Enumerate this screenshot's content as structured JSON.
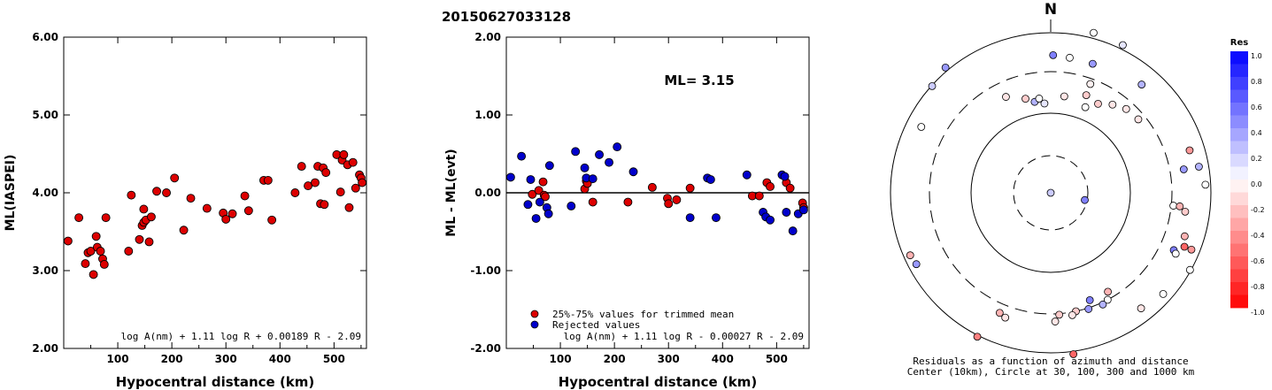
{
  "title": "20150627033128",
  "chart_data": [
    {
      "type": "scatter",
      "xlabel": "Hypocentral distance (km)",
      "ylabel": "ML(IASPEI)",
      "xlim": [
        0,
        560
      ],
      "ylim": [
        2.0,
        6.0
      ],
      "xticks": [
        100,
        200,
        300,
        400,
        500
      ],
      "yticks": [
        "2.00",
        "3.00",
        "4.00",
        "5.00",
        "6.00"
      ],
      "formula": "log A(nm) + 1.11 log R + 0.00189 R - 2.09",
      "series": [
        {
          "color": "#dd0000",
          "points": [
            [
              8,
              3.38
            ],
            [
              28,
              3.68
            ],
            [
              40,
              3.09
            ],
            [
              45,
              3.23
            ],
            [
              50,
              3.25
            ],
            [
              55,
              2.95
            ],
            [
              60,
              3.44
            ],
            [
              62,
              3.3
            ],
            [
              68,
              3.25
            ],
            [
              72,
              3.15
            ],
            [
              75,
              3.08
            ],
            [
              78,
              3.68
            ],
            [
              120,
              3.25
            ],
            [
              125,
              3.97
            ],
            [
              140,
              3.4
            ],
            [
              145,
              3.58
            ],
            [
              148,
              3.62
            ],
            [
              148,
              3.79
            ],
            [
              152,
              3.65
            ],
            [
              158,
              3.37
            ],
            [
              162,
              3.69
            ],
            [
              172,
              4.02
            ],
            [
              190,
              4.0
            ],
            [
              205,
              4.19
            ],
            [
              222,
              3.52
            ],
            [
              235,
              3.93
            ],
            [
              265,
              3.8
            ],
            [
              295,
              3.74
            ],
            [
              300,
              3.66
            ],
            [
              312,
              3.73
            ],
            [
              335,
              3.96
            ],
            [
              342,
              3.77
            ],
            [
              370,
              4.16
            ],
            [
              378,
              4.16
            ],
            [
              385,
              3.65
            ],
            [
              428,
              4.0
            ],
            [
              440,
              4.34
            ],
            [
              452,
              4.09
            ],
            [
              465,
              4.13
            ],
            [
              470,
              4.34
            ],
            [
              475,
              3.86
            ],
            [
              480,
              4.32
            ],
            [
              482,
              3.85
            ],
            [
              485,
              4.26
            ],
            [
              505,
              4.49
            ],
            [
              512,
              4.01
            ],
            [
              515,
              4.42
            ],
            [
              518,
              4.49
            ],
            [
              525,
              4.36
            ],
            [
              528,
              3.81
            ],
            [
              535,
              4.39
            ],
            [
              540,
              4.06
            ],
            [
              547,
              4.23
            ],
            [
              550,
              4.19
            ],
            [
              552,
              4.13
            ]
          ]
        }
      ]
    },
    {
      "type": "scatter",
      "xlabel": "Hypocentral distance (km)",
      "ylabel": "ML - ML(evt)",
      "xlim": [
        0,
        560
      ],
      "ylim": [
        -2.0,
        2.0
      ],
      "xticks": [
        100,
        200,
        300,
        400,
        500
      ],
      "yticks": [
        "-2.00",
        "-1.00",
        "0.00",
        "1.00",
        "2.00"
      ],
      "annotation": "ML= 3.15",
      "formula": "log A(nm) + 1.11 log R - 0.00027 R - 2.09",
      "legend": {
        "position": "bottom-left",
        "entries": [
          {
            "label": "25%-75% values for trimmed mean",
            "color": "#dd0000"
          },
          {
            "label": "Rejected values",
            "color": "#0000cc"
          }
        ]
      },
      "series": [
        {
          "name": "25%-75% values for trimmed mean",
          "color": "#dd0000",
          "points": [
            [
              48,
              -0.02
            ],
            [
              60,
              0.03
            ],
            [
              68,
              0.14
            ],
            [
              70,
              -0.03
            ],
            [
              72,
              -0.05
            ],
            [
              145,
              0.05
            ],
            [
              148,
              0.15
            ],
            [
              150,
              0.12
            ],
            [
              160,
              -0.12
            ],
            [
              225,
              -0.12
            ],
            [
              270,
              0.07
            ],
            [
              298,
              -0.07
            ],
            [
              300,
              -0.14
            ],
            [
              315,
              -0.09
            ],
            [
              340,
              0.06
            ],
            [
              455,
              -0.04
            ],
            [
              468,
              -0.04
            ],
            [
              482,
              0.13
            ],
            [
              488,
              0.08
            ],
            [
              518,
              0.13
            ],
            [
              525,
              0.06
            ],
            [
              548,
              -0.13
            ],
            [
              550,
              -0.19
            ]
          ]
        },
        {
          "name": "Rejected values",
          "color": "#0000cc",
          "points": [
            [
              8,
              0.2
            ],
            [
              28,
              0.47
            ],
            [
              40,
              -0.15
            ],
            [
              45,
              0.17
            ],
            [
              55,
              -0.33
            ],
            [
              62,
              -0.12
            ],
            [
              75,
              -0.19
            ],
            [
              78,
              -0.27
            ],
            [
              80,
              0.35
            ],
            [
              120,
              -0.17
            ],
            [
              128,
              0.53
            ],
            [
              145,
              0.32
            ],
            [
              148,
              0.19
            ],
            [
              160,
              0.18
            ],
            [
              172,
              0.49
            ],
            [
              190,
              0.39
            ],
            [
              205,
              0.59
            ],
            [
              235,
              0.27
            ],
            [
              340,
              -0.32
            ],
            [
              372,
              0.19
            ],
            [
              378,
              0.17
            ],
            [
              388,
              -0.32
            ],
            [
              445,
              0.23
            ],
            [
              475,
              -0.25
            ],
            [
              480,
              -0.31
            ],
            [
              488,
              -0.35
            ],
            [
              510,
              0.23
            ],
            [
              515,
              0.21
            ],
            [
              518,
              -0.25
            ],
            [
              530,
              -0.49
            ],
            [
              540,
              -0.27
            ],
            [
              550,
              -0.22
            ]
          ]
        }
      ]
    },
    {
      "type": "polar_scatter",
      "north_label": "N",
      "caption_line1": "Residuals as a function of azimuth and distance",
      "caption_line2": "Center (10km), Circle at 30, 100, 300 and 1000 km",
      "colorbar": {
        "title": "Res",
        "ticks": [
          "1.0",
          "0.8",
          "0.6",
          "0.4",
          "0.2",
          "0.0",
          "-0.2",
          "-0.4",
          "-0.6",
          "-0.8",
          "-1.0"
        ],
        "max_color": "#0000ff",
        "min_color": "#ff0000"
      },
      "points": [
        {
          "az": 0,
          "dist": 10,
          "res": 0.2
        },
        {
          "az": 102,
          "dist": 28,
          "res": 0.5
        },
        {
          "az": 1,
          "dist": 500,
          "res": 0.5
        },
        {
          "az": 8,
          "dist": 480,
          "res": 0.0
        },
        {
          "az": 18,
          "dist": 470,
          "res": 0.4
        },
        {
          "az": 20,
          "dist": 260,
          "res": -0.05
        },
        {
          "az": 40,
          "dist": 560,
          "res": 0.3
        },
        {
          "az": 80,
          "dist": 460,
          "res": 0.4
        },
        {
          "az": 73,
          "dist": 630,
          "res": -0.4
        },
        {
          "az": 80,
          "dist": 740,
          "res": 0.3
        },
        {
          "az": 87,
          "dist": 850,
          "res": 0.0
        },
        {
          "az": 96,
          "dist": 320,
          "res": 0.0
        },
        {
          "az": 96,
          "dist": 390,
          "res": -0.3
        },
        {
          "az": 98,
          "dist": 470,
          "res": -0.2
        },
        {
          "az": 112,
          "dist": 770,
          "res": -0.4
        },
        {
          "az": 112,
          "dist": 610,
          "res": -0.6
        },
        {
          "az": 108,
          "dist": 550,
          "res": -0.3
        },
        {
          "az": 115,
          "dist": 470,
          "res": 0.5
        },
        {
          "az": 116,
          "dist": 520,
          "res": 0.0
        },
        {
          "az": 119,
          "dist": 970,
          "res": 0.0
        },
        {
          "az": 132,
          "dist": 760,
          "res": 0.0
        },
        {
          "az": 142,
          "dist": 660,
          "res": -0.1
        },
        {
          "az": 150,
          "dist": 250,
          "res": -0.3
        },
        {
          "az": 152,
          "dist": 300,
          "res": 0.0
        },
        {
          "az": 155,
          "dist": 320,
          "res": 0.3
        },
        {
          "az": 160,
          "dist": 250,
          "res": 0.5
        },
        {
          "az": 162,
          "dist": 310,
          "res": 0.4
        },
        {
          "az": 168,
          "dist": 300,
          "res": -0.2
        },
        {
          "az": 170,
          "dist": 330,
          "res": -0.1
        },
        {
          "az": 172,
          "dist": 1100,
          "res": -0.6
        },
        {
          "az": 176,
          "dist": 310,
          "res": -0.2
        },
        {
          "az": 178,
          "dist": 380,
          "res": -0.1
        },
        {
          "az": 200,
          "dist": 430,
          "res": -0.1
        },
        {
          "az": 203,
          "dist": 400,
          "res": -0.3
        },
        {
          "az": 207,
          "dist": 1050,
          "res": -0.5
        },
        {
          "az": 242,
          "dist": 780,
          "res": 0.4
        },
        {
          "az": 246,
          "dist": 820,
          "res": -0.3
        },
        {
          "az": 297,
          "dist": 630,
          "res": 0.0
        },
        {
          "az": 312,
          "dist": 980,
          "res": 0.2
        },
        {
          "az": 320,
          "dist": 1120,
          "res": 0.4
        },
        {
          "az": 335,
          "dist": 200,
          "res": -0.1
        },
        {
          "az": 345,
          "dist": 160,
          "res": -0.2
        },
        {
          "az": 350,
          "dist": 140,
          "res": 0.3
        },
        {
          "az": 353,
          "dist": 150,
          "res": 0.0
        },
        {
          "az": 356,
          "dist": 130,
          "res": 0.1
        },
        {
          "az": 8,
          "dist": 160,
          "res": -0.1
        },
        {
          "az": 20,
          "dist": 190,
          "res": -0.2
        },
        {
          "az": 22,
          "dist": 140,
          "res": 0.0
        },
        {
          "az": 28,
          "dist": 175,
          "res": -0.2
        },
        {
          "az": 35,
          "dist": 210,
          "res": -0.1
        },
        {
          "az": 42,
          "dist": 240,
          "res": -0.1
        },
        {
          "az": 50,
          "dist": 250,
          "res": -0.1
        },
        {
          "az": 15,
          "dist": 1200,
          "res": 0.0
        },
        {
          "az": 26,
          "dist": 1150,
          "res": 0.1
        }
      ]
    }
  ]
}
